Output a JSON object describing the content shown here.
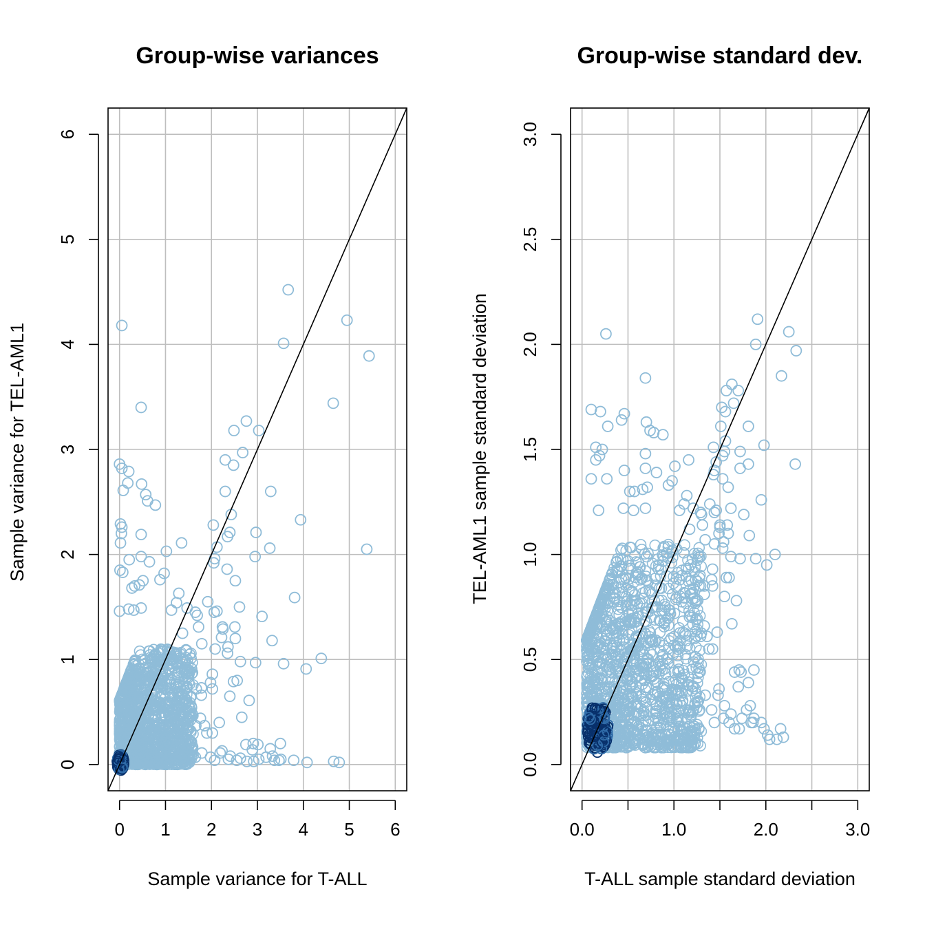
{
  "chart_data": [
    {
      "type": "scatter",
      "title": "Group-wise variances",
      "xlabel": "Sample variance for T-ALL",
      "ylabel": "Sample variance for TEL-AML1",
      "xlim": [
        -0.25,
        6.25
      ],
      "ylim": [
        -0.25,
        6.25
      ],
      "xticks": [
        "0",
        "1",
        "2",
        "3",
        "4",
        "5",
        "6"
      ],
      "yticks": [
        "0",
        "1",
        "2",
        "3",
        "4",
        "5",
        "6"
      ],
      "grid": true,
      "reference_line": "y = x",
      "point_color": "#8fbcd8",
      "dense_color": "#08306b",
      "marker": "open-circle",
      "dense_cluster": {
        "x_range": [
          0,
          1.6
        ],
        "y_range": [
          0,
          1.1
        ]
      },
      "points": [
        [
          0.05,
          4.18
        ],
        [
          3.67,
          4.52
        ],
        [
          4.95,
          4.23
        ],
        [
          5.43,
          3.89
        ],
        [
          3.57,
          4.01
        ],
        [
          0.47,
          3.4
        ],
        [
          4.65,
          3.44
        ],
        [
          2.76,
          3.27
        ],
        [
          2.49,
          3.18
        ],
        [
          3.03,
          3.18
        ],
        [
          2.68,
          2.97
        ],
        [
          2.3,
          2.9
        ],
        [
          2.48,
          2.85
        ],
        [
          0.0,
          2.86
        ],
        [
          0.05,
          2.82
        ],
        [
          0.2,
          2.79
        ],
        [
          0.48,
          2.67
        ],
        [
          0.18,
          2.68
        ],
        [
          0.08,
          2.61
        ],
        [
          0.57,
          2.57
        ],
        [
          0.61,
          2.51
        ],
        [
          0.78,
          2.47
        ],
        [
          2.3,
          2.6
        ],
        [
          3.29,
          2.6
        ],
        [
          2.43,
          2.38
        ],
        [
          3.94,
          2.33
        ],
        [
          0.02,
          2.29
        ],
        [
          0.05,
          2.26
        ],
        [
          0.04,
          2.2
        ],
        [
          0.02,
          2.11
        ],
        [
          0.47,
          2.19
        ],
        [
          2.04,
          2.28
        ],
        [
          2.4,
          2.21
        ],
        [
          2.35,
          2.17
        ],
        [
          2.97,
          2.21
        ],
        [
          2.12,
          2.07
        ],
        [
          1.35,
          2.11
        ],
        [
          1.02,
          2.03
        ],
        [
          0.47,
          1.98
        ],
        [
          2.07,
          1.96
        ],
        [
          2.05,
          1.92
        ],
        [
          2.95,
          1.98
        ],
        [
          3.27,
          2.06
        ],
        [
          5.38,
          2.05
        ],
        [
          0.01,
          1.85
        ],
        [
          0.07,
          1.83
        ],
        [
          0.65,
          1.93
        ],
        [
          0.21,
          1.95
        ],
        [
          0.97,
          1.82
        ],
        [
          2.34,
          1.86
        ],
        [
          0.51,
          1.75
        ],
        [
          0.43,
          1.71
        ],
        [
          0.33,
          1.7
        ],
        [
          0.27,
          1.68
        ],
        [
          0.88,
          1.76
        ],
        [
          1.29,
          1.63
        ],
        [
          2.52,
          1.75
        ],
        [
          3.81,
          1.59
        ],
        [
          2.12,
          1.46
        ],
        [
          2.06,
          1.45
        ],
        [
          1.69,
          1.42
        ],
        [
          1.65,
          1.45
        ],
        [
          2.61,
          1.5
        ],
        [
          3.1,
          1.41
        ],
        [
          1.92,
          1.55
        ],
        [
          0.0,
          1.46
        ],
        [
          0.2,
          1.48
        ],
        [
          0.31,
          1.47
        ],
        [
          0.47,
          1.49
        ],
        [
          1.13,
          1.47
        ],
        [
          1.47,
          1.49
        ],
        [
          1.24,
          1.54
        ],
        [
          2.24,
          1.31
        ],
        [
          2.51,
          1.31
        ],
        [
          2.25,
          1.29
        ],
        [
          1.72,
          1.31
        ],
        [
          2.22,
          1.21
        ],
        [
          2.52,
          1.2
        ],
        [
          1.37,
          1.25
        ],
        [
          1.79,
          1.15
        ],
        [
          2.36,
          1.12
        ],
        [
          2.08,
          1.1
        ],
        [
          3.32,
          1.18
        ],
        [
          2.35,
          1.06
        ],
        [
          2.63,
          0.98
        ],
        [
          2.96,
          0.97
        ],
        [
          3.57,
          0.96
        ],
        [
          4.06,
          0.91
        ],
        [
          4.39,
          1.01
        ],
        [
          2.02,
          0.86
        ],
        [
          2.48,
          0.79
        ],
        [
          2.56,
          0.8
        ],
        [
          1.52,
          0.89
        ],
        [
          1.78,
          0.73
        ],
        [
          1.98,
          0.78
        ],
        [
          1.67,
          0.72
        ],
        [
          2.02,
          0.72
        ],
        [
          1.78,
          0.66
        ],
        [
          2.4,
          0.65
        ],
        [
          2.82,
          0.61
        ],
        [
          2.66,
          0.45
        ],
        [
          1.54,
          0.47
        ],
        [
          2.17,
          0.4
        ],
        [
          1.76,
          0.44
        ],
        [
          1.85,
          0.37
        ],
        [
          1.9,
          0.3
        ],
        [
          2.02,
          0.3
        ],
        [
          1.66,
          0.37
        ],
        [
          2.23,
          0.13
        ],
        [
          2.19,
          0.11
        ],
        [
          2.75,
          0.19
        ],
        [
          2.91,
          0.2
        ],
        [
          3.01,
          0.19
        ],
        [
          3.28,
          0.15
        ],
        [
          3.5,
          0.2
        ],
        [
          2.89,
          0.14
        ],
        [
          2.41,
          0.08
        ],
        [
          2.63,
          0.06
        ],
        [
          2.37,
          0.05
        ],
        [
          2.77,
          0.03
        ],
        [
          3.03,
          0.05
        ],
        [
          3.33,
          0.08
        ],
        [
          3.51,
          0.05
        ],
        [
          3.79,
          0.04
        ],
        [
          3.37,
          0.04
        ],
        [
          4.08,
          0.02
        ],
        [
          4.66,
          0.03
        ],
        [
          4.78,
          0.02
        ],
        [
          2.55,
          0.04
        ],
        [
          2.92,
          0.03
        ],
        [
          3.19,
          0.07
        ],
        [
          3.47,
          0.04
        ],
        [
          2.07,
          0.04
        ],
        [
          1.98,
          0.07
        ],
        [
          1.6,
          0.09
        ],
        [
          1.79,
          0.11
        ],
        [
          1.43,
          0.14
        ],
        [
          1.65,
          0.07
        ],
        [
          1.34,
          0.06
        ]
      ]
    },
    {
      "type": "scatter",
      "title": "Group-wise standard dev.",
      "xlabel": "T-ALL sample standard deviation",
      "ylabel": "TEL-AML1 sample standard deviation",
      "xlim": [
        -0.125,
        3.125
      ],
      "ylim": [
        -0.125,
        3.125
      ],
      "xticks": [
        "0.0",
        "",
        "1.0",
        "",
        "2.0",
        "",
        "3.0"
      ],
      "yticks": [
        "0.0",
        "0.5",
        "1.0",
        "1.5",
        "2.0",
        "2.5",
        "3.0"
      ],
      "grid": true,
      "reference_line": "y = x",
      "point_color": "#8fbcd8",
      "dense_color": "#08306b",
      "marker": "open-circle",
      "dense_cluster": {
        "x_range": [
          0.05,
          1.3
        ],
        "y_range": [
          0.08,
          1.05
        ]
      },
      "points": [
        [
          0.26,
          2.05
        ],
        [
          1.91,
          2.12
        ],
        [
          2.25,
          2.06
        ],
        [
          2.33,
          1.97
        ],
        [
          1.89,
          2.0
        ],
        [
          2.17,
          1.85
        ],
        [
          0.69,
          1.84
        ],
        [
          1.63,
          1.81
        ],
        [
          1.7,
          1.78
        ],
        [
          1.57,
          1.78
        ],
        [
          1.65,
          1.72
        ],
        [
          1.52,
          1.7
        ],
        [
          1.56,
          1.68
        ],
        [
          0.1,
          1.69
        ],
        [
          0.2,
          1.68
        ],
        [
          0.46,
          1.67
        ],
        [
          0.7,
          1.63
        ],
        [
          0.43,
          1.64
        ],
        [
          0.28,
          1.61
        ],
        [
          0.74,
          1.59
        ],
        [
          0.78,
          1.58
        ],
        [
          0.88,
          1.57
        ],
        [
          1.51,
          1.61
        ],
        [
          1.81,
          1.61
        ],
        [
          1.56,
          1.54
        ],
        [
          1.98,
          1.52
        ],
        [
          0.15,
          1.51
        ],
        [
          0.22,
          1.5
        ],
        [
          0.19,
          1.47
        ],
        [
          0.15,
          1.45
        ],
        [
          0.69,
          1.48
        ],
        [
          1.43,
          1.51
        ],
        [
          1.55,
          1.49
        ],
        [
          1.53,
          1.47
        ],
        [
          1.72,
          1.49
        ],
        [
          1.46,
          1.44
        ],
        [
          1.16,
          1.45
        ],
        [
          1.01,
          1.42
        ],
        [
          0.69,
          1.41
        ],
        [
          1.44,
          1.4
        ],
        [
          1.43,
          1.38
        ],
        [
          1.72,
          1.41
        ],
        [
          1.81,
          1.43
        ],
        [
          2.32,
          1.43
        ],
        [
          0.1,
          1.36
        ],
        [
          0.27,
          1.36
        ],
        [
          0.81,
          1.39
        ],
        [
          0.46,
          1.4
        ],
        [
          0.98,
          1.35
        ],
        [
          1.53,
          1.36
        ],
        [
          0.71,
          1.32
        ],
        [
          0.66,
          1.31
        ],
        [
          0.57,
          1.3
        ],
        [
          0.52,
          1.3
        ],
        [
          0.94,
          1.33
        ],
        [
          1.14,
          1.28
        ],
        [
          1.59,
          1.32
        ],
        [
          1.95,
          1.26
        ],
        [
          1.46,
          1.21
        ],
        [
          1.44,
          1.2
        ],
        [
          1.3,
          1.19
        ],
        [
          1.29,
          1.2
        ],
        [
          1.62,
          1.22
        ],
        [
          1.76,
          1.19
        ],
        [
          1.39,
          1.24
        ],
        [
          0.18,
          1.21
        ],
        [
          0.45,
          1.22
        ],
        [
          0.56,
          1.21
        ],
        [
          0.69,
          1.22
        ],
        [
          1.06,
          1.21
        ],
        [
          1.21,
          1.22
        ],
        [
          1.11,
          1.24
        ],
        [
          1.5,
          1.14
        ],
        [
          1.58,
          1.14
        ],
        [
          1.5,
          1.13
        ],
        [
          1.31,
          1.14
        ],
        [
          1.49,
          1.1
        ],
        [
          1.59,
          1.1
        ],
        [
          1.17,
          1.12
        ],
        [
          1.34,
          1.07
        ],
        [
          1.54,
          1.06
        ],
        [
          1.44,
          1.05
        ],
        [
          1.82,
          1.09
        ],
        [
          1.53,
          1.03
        ],
        [
          1.62,
          0.99
        ],
        [
          1.72,
          0.98
        ],
        [
          1.89,
          0.98
        ],
        [
          2.01,
          0.95
        ],
        [
          2.1,
          1.0
        ],
        [
          1.42,
          0.93
        ],
        [
          1.57,
          0.89
        ],
        [
          1.6,
          0.89
        ],
        [
          1.23,
          0.94
        ],
        [
          1.33,
          0.85
        ],
        [
          1.41,
          0.88
        ],
        [
          1.29,
          0.85
        ],
        [
          1.42,
          0.85
        ],
        [
          1.33,
          0.81
        ],
        [
          1.55,
          0.8
        ],
        [
          1.68,
          0.78
        ],
        [
          1.63,
          0.67
        ],
        [
          1.24,
          0.69
        ],
        [
          1.47,
          0.63
        ],
        [
          1.33,
          0.66
        ],
        [
          1.36,
          0.61
        ],
        [
          1.38,
          0.55
        ],
        [
          1.42,
          0.55
        ],
        [
          1.29,
          0.61
        ],
        [
          1.49,
          0.36
        ],
        [
          1.48,
          0.33
        ],
        [
          1.66,
          0.44
        ],
        [
          1.71,
          0.45
        ],
        [
          1.73,
          0.44
        ],
        [
          1.81,
          0.39
        ],
        [
          1.87,
          0.45
        ],
        [
          1.7,
          0.37
        ],
        [
          1.55,
          0.28
        ],
        [
          1.62,
          0.24
        ],
        [
          1.54,
          0.22
        ],
        [
          1.66,
          0.17
        ],
        [
          1.74,
          0.22
        ],
        [
          1.83,
          0.28
        ],
        [
          1.87,
          0.22
        ],
        [
          1.95,
          0.2
        ],
        [
          1.84,
          0.2
        ],
        [
          2.02,
          0.14
        ],
        [
          2.16,
          0.17
        ],
        [
          2.19,
          0.13
        ],
        [
          1.6,
          0.2
        ],
        [
          1.71,
          0.17
        ],
        [
          1.79,
          0.26
        ],
        [
          1.86,
          0.2
        ],
        [
          1.44,
          0.2
        ],
        [
          1.41,
          0.26
        ],
        [
          1.26,
          0.3
        ],
        [
          1.34,
          0.33
        ],
        [
          1.2,
          0.37
        ],
        [
          1.28,
          0.26
        ],
        [
          1.16,
          0.24
        ],
        [
          2.04,
          0.12
        ],
        [
          1.98,
          0.17
        ],
        [
          2.12,
          0.12
        ],
        [
          1.13,
          0.13
        ],
        [
          1.04,
          0.12
        ],
        [
          1.23,
          0.15
        ],
        [
          0.86,
          0.1
        ],
        [
          0.91,
          0.14
        ]
      ]
    }
  ]
}
